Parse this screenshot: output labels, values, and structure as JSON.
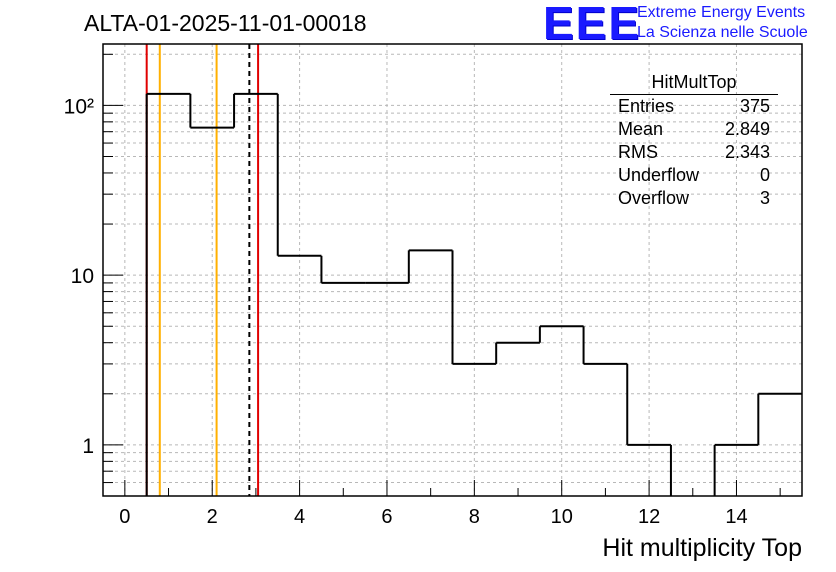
{
  "header": {
    "title": "ALTA-01-2025-11-01-00018"
  },
  "logo": {
    "mark": "EEE",
    "line1": "Extreme Energy Events",
    "line2": "La Scienza nelle Scuole",
    "color": "#1a1aff"
  },
  "stats": {
    "title": "HitMultTop",
    "rows": [
      {
        "label": "Entries",
        "value": "375"
      },
      {
        "label": "Mean",
        "value": "2.849"
      },
      {
        "label": "RMS",
        "value": "2.343"
      },
      {
        "label": "Underflow",
        "value": "0"
      },
      {
        "label": "Overflow",
        "value": "3"
      }
    ]
  },
  "chart_data": {
    "type": "histogram",
    "title": "ALTA-01-2025-11-01-00018",
    "xlabel": "Hit multiplicity Top",
    "ylabel": "",
    "xlim": [
      -0.5,
      15.5
    ],
    "ylim": [
      0.5,
      230
    ],
    "yscale": "log",
    "grid": true,
    "bin_edges": [
      -0.5,
      0.5,
      1.5,
      2.5,
      3.5,
      4.5,
      5.5,
      6.5,
      7.5,
      8.5,
      9.5,
      10.5,
      11.5,
      12.5,
      13.5,
      14.5,
      15.5
    ],
    "counts": [
      0,
      117,
      74,
      117,
      13,
      9,
      9,
      14,
      3,
      4,
      5,
      3,
      1,
      0,
      1,
      2
    ],
    "x_ticks": [
      0,
      2,
      4,
      6,
      8,
      10,
      12,
      14
    ],
    "x_tick_labels": [
      "0",
      "2",
      "4",
      "6",
      "8",
      "10",
      "12",
      "14"
    ],
    "y_ticks": [
      1,
      10,
      100
    ],
    "y_tick_labels": [
      "1",
      "10",
      "10²"
    ],
    "vertical_lines": [
      {
        "x": 0.5,
        "color": "#e00000",
        "style": "solid"
      },
      {
        "x": 0.8,
        "color": "#ffb000",
        "style": "solid"
      },
      {
        "x": 2.1,
        "color": "#ffb000",
        "style": "solid"
      },
      {
        "x": 2.85,
        "color": "#000000",
        "style": "dashed"
      },
      {
        "x": 3.05,
        "color": "#e00000",
        "style": "solid"
      }
    ]
  }
}
